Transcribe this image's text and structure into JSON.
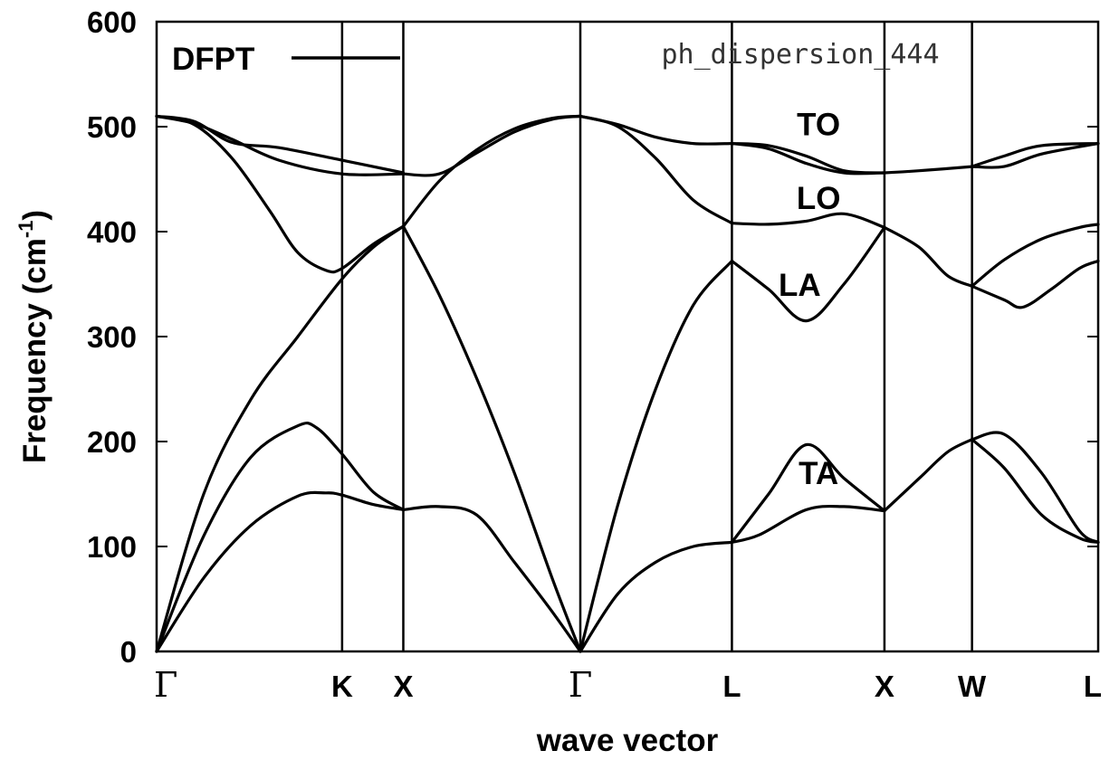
{
  "chart_data": {
    "type": "line",
    "title": "ph_dispersion_444",
    "xlabel": "wave vector",
    "ylabel": "Frequency (cm",
    "ylabel_superscript": "-1",
    "ylabel_close": ")",
    "ylim": [
      0,
      600
    ],
    "yticks": [
      0,
      100,
      200,
      300,
      400,
      500,
      600
    ],
    "ytick_labels": [
      "0",
      "100",
      "200",
      "300",
      "400",
      "500",
      "600"
    ],
    "xlim": [
      0,
      1
    ],
    "high_symmetry_points": [
      {
        "label": "Γ",
        "x": 0.0
      },
      {
        "label": "K",
        "x": 0.197
      },
      {
        "label": "X",
        "x": 0.262
      },
      {
        "label": "Γ",
        "x": 0.45
      },
      {
        "label": "L",
        "x": 0.611
      },
      {
        "label": "X",
        "x": 0.773
      },
      {
        "label": "W",
        "x": 0.866
      },
      {
        "label": "L",
        "x": 1.0
      }
    ],
    "legend": {
      "entries": [
        "DFPT"
      ],
      "position": "top-left"
    },
    "band_labels": [
      {
        "text": "TO",
        "x": 0.703,
        "y": 502
      },
      {
        "text": "LO",
        "x": 0.703,
        "y": 432
      },
      {
        "text": "LA",
        "x": 0.683,
        "y": 349
      },
      {
        "text": "TA",
        "x": 0.703,
        "y": 170
      }
    ],
    "series": [
      {
        "name": "DFPT",
        "values": [
          [
            [
              0.0,
              0
            ],
            [
              0.05,
              110
            ],
            [
              0.1,
              185
            ],
            [
              0.15,
              215
            ],
            [
              0.17,
              213
            ],
            [
              0.197,
              188
            ],
            [
              0.23,
              152
            ],
            [
              0.262,
              135
            ]
          ],
          [
            [
              0.0,
              0
            ],
            [
              0.05,
              70
            ],
            [
              0.1,
              120
            ],
            [
              0.15,
              148
            ],
            [
              0.18,
              151
            ],
            [
              0.197,
              149
            ],
            [
              0.23,
              140
            ],
            [
              0.262,
              135
            ]
          ],
          [
            [
              0.0,
              0
            ],
            [
              0.05,
              150
            ],
            [
              0.1,
              240
            ],
            [
              0.15,
              300
            ],
            [
              0.197,
              355
            ],
            [
              0.23,
              385
            ],
            [
              0.262,
              405
            ]
          ],
          [
            [
              0.0,
              510
            ],
            [
              0.04,
              502
            ],
            [
              0.08,
              470
            ],
            [
              0.12,
              420
            ],
            [
              0.15,
              380
            ],
            [
              0.18,
              363
            ],
            [
              0.197,
              365
            ],
            [
              0.23,
              388
            ],
            [
              0.262,
              405
            ]
          ],
          [
            [
              0.0,
              510
            ],
            [
              0.04,
              505
            ],
            [
              0.08,
              485
            ],
            [
              0.13,
              480
            ],
            [
              0.197,
              468
            ],
            [
              0.262,
              456
            ]
          ],
          [
            [
              0.0,
              510
            ],
            [
              0.04,
              503
            ],
            [
              0.08,
              488
            ],
            [
              0.13,
              468
            ],
            [
              0.197,
              455
            ],
            [
              0.262,
              455
            ]
          ],
          [
            [
              0.262,
              135
            ],
            [
              0.3,
              138
            ],
            [
              0.34,
              130
            ],
            [
              0.38,
              85
            ],
            [
              0.42,
              38
            ],
            [
              0.45,
              0
            ]
          ],
          [
            [
              0.262,
              405
            ],
            [
              0.3,
              340
            ],
            [
              0.34,
              260
            ],
            [
              0.38,
              170
            ],
            [
              0.42,
              70
            ],
            [
              0.45,
              0
            ]
          ],
          [
            [
              0.262,
              455
            ],
            [
              0.3,
              455
            ],
            [
              0.34,
              475
            ],
            [
              0.38,
              495
            ],
            [
              0.42,
              507
            ],
            [
              0.45,
              510
            ]
          ],
          [
            [
              0.262,
              405
            ],
            [
              0.3,
              448
            ],
            [
              0.34,
              478
            ],
            [
              0.38,
              498
            ],
            [
              0.42,
              508
            ],
            [
              0.45,
              510
            ]
          ],
          [
            [
              0.45,
              0
            ],
            [
              0.49,
              55
            ],
            [
              0.53,
              85
            ],
            [
              0.57,
              100
            ],
            [
              0.611,
              104
            ]
          ],
          [
            [
              0.45,
              0
            ],
            [
              0.49,
              140
            ],
            [
              0.53,
              250
            ],
            [
              0.57,
              330
            ],
            [
              0.611,
              372
            ]
          ],
          [
            [
              0.45,
              510
            ],
            [
              0.49,
              500
            ],
            [
              0.53,
              470
            ],
            [
              0.57,
              430
            ],
            [
              0.611,
              408
            ]
          ],
          [
            [
              0.45,
              510
            ],
            [
              0.49,
              502
            ],
            [
              0.53,
              490
            ],
            [
              0.57,
              484
            ],
            [
              0.611,
              484
            ]
          ],
          [
            [
              0.611,
              104
            ],
            [
              0.64,
              111
            ],
            [
              0.69,
              135
            ],
            [
              0.73,
              138
            ],
            [
              0.773,
              134
            ]
          ],
          [
            [
              0.611,
              104
            ],
            [
              0.65,
              150
            ],
            [
              0.69,
              197
            ],
            [
              0.73,
              165
            ],
            [
              0.773,
              134
            ]
          ],
          [
            [
              0.611,
              372
            ],
            [
              0.65,
              345
            ],
            [
              0.69,
              315
            ],
            [
              0.73,
              350
            ],
            [
              0.773,
              404
            ]
          ],
          [
            [
              0.611,
              408
            ],
            [
              0.65,
              407
            ],
            [
              0.69,
              410
            ],
            [
              0.73,
              417
            ],
            [
              0.773,
              404
            ]
          ],
          [
            [
              0.611,
              484
            ],
            [
              0.65,
              482
            ],
            [
              0.69,
              472
            ],
            [
              0.73,
              458
            ],
            [
              0.773,
              456
            ]
          ],
          [
            [
              0.611,
              484
            ],
            [
              0.65,
              479
            ],
            [
              0.69,
              465
            ],
            [
              0.73,
              456
            ],
            [
              0.773,
              456
            ]
          ],
          [
            [
              0.773,
              134
            ],
            [
              0.81,
              165
            ],
            [
              0.84,
              190
            ],
            [
              0.866,
              202
            ]
          ],
          [
            [
              0.773,
              404
            ],
            [
              0.81,
              385
            ],
            [
              0.84,
              358
            ],
            [
              0.866,
              348
            ]
          ],
          [
            [
              0.773,
              456
            ],
            [
              0.81,
              458
            ],
            [
              0.866,
              462
            ]
          ],
          [
            [
              0.866,
              202
            ],
            [
              0.9,
              207
            ],
            [
              0.94,
              170
            ],
            [
              0.98,
              115
            ],
            [
              1.0,
              104
            ]
          ],
          [
            [
              0.866,
              202
            ],
            [
              0.9,
              175
            ],
            [
              0.94,
              130
            ],
            [
              0.98,
              108
            ],
            [
              1.0,
              104
            ]
          ],
          [
            [
              0.866,
              348
            ],
            [
              0.9,
              373
            ],
            [
              0.94,
              393
            ],
            [
              0.98,
              404
            ],
            [
              1.0,
              407
            ]
          ],
          [
            [
              0.866,
              348
            ],
            [
              0.9,
              335
            ],
            [
              0.92,
              328
            ],
            [
              0.95,
              345
            ],
            [
              0.98,
              365
            ],
            [
              1.0,
              372
            ]
          ],
          [
            [
              0.866,
              462
            ],
            [
              0.9,
              472
            ],
            [
              0.94,
              482
            ],
            [
              1.0,
              484
            ]
          ],
          [
            [
              0.866,
              462
            ],
            [
              0.9,
              462
            ],
            [
              0.94,
              474
            ],
            [
              1.0,
              484
            ]
          ]
        ]
      }
    ]
  }
}
